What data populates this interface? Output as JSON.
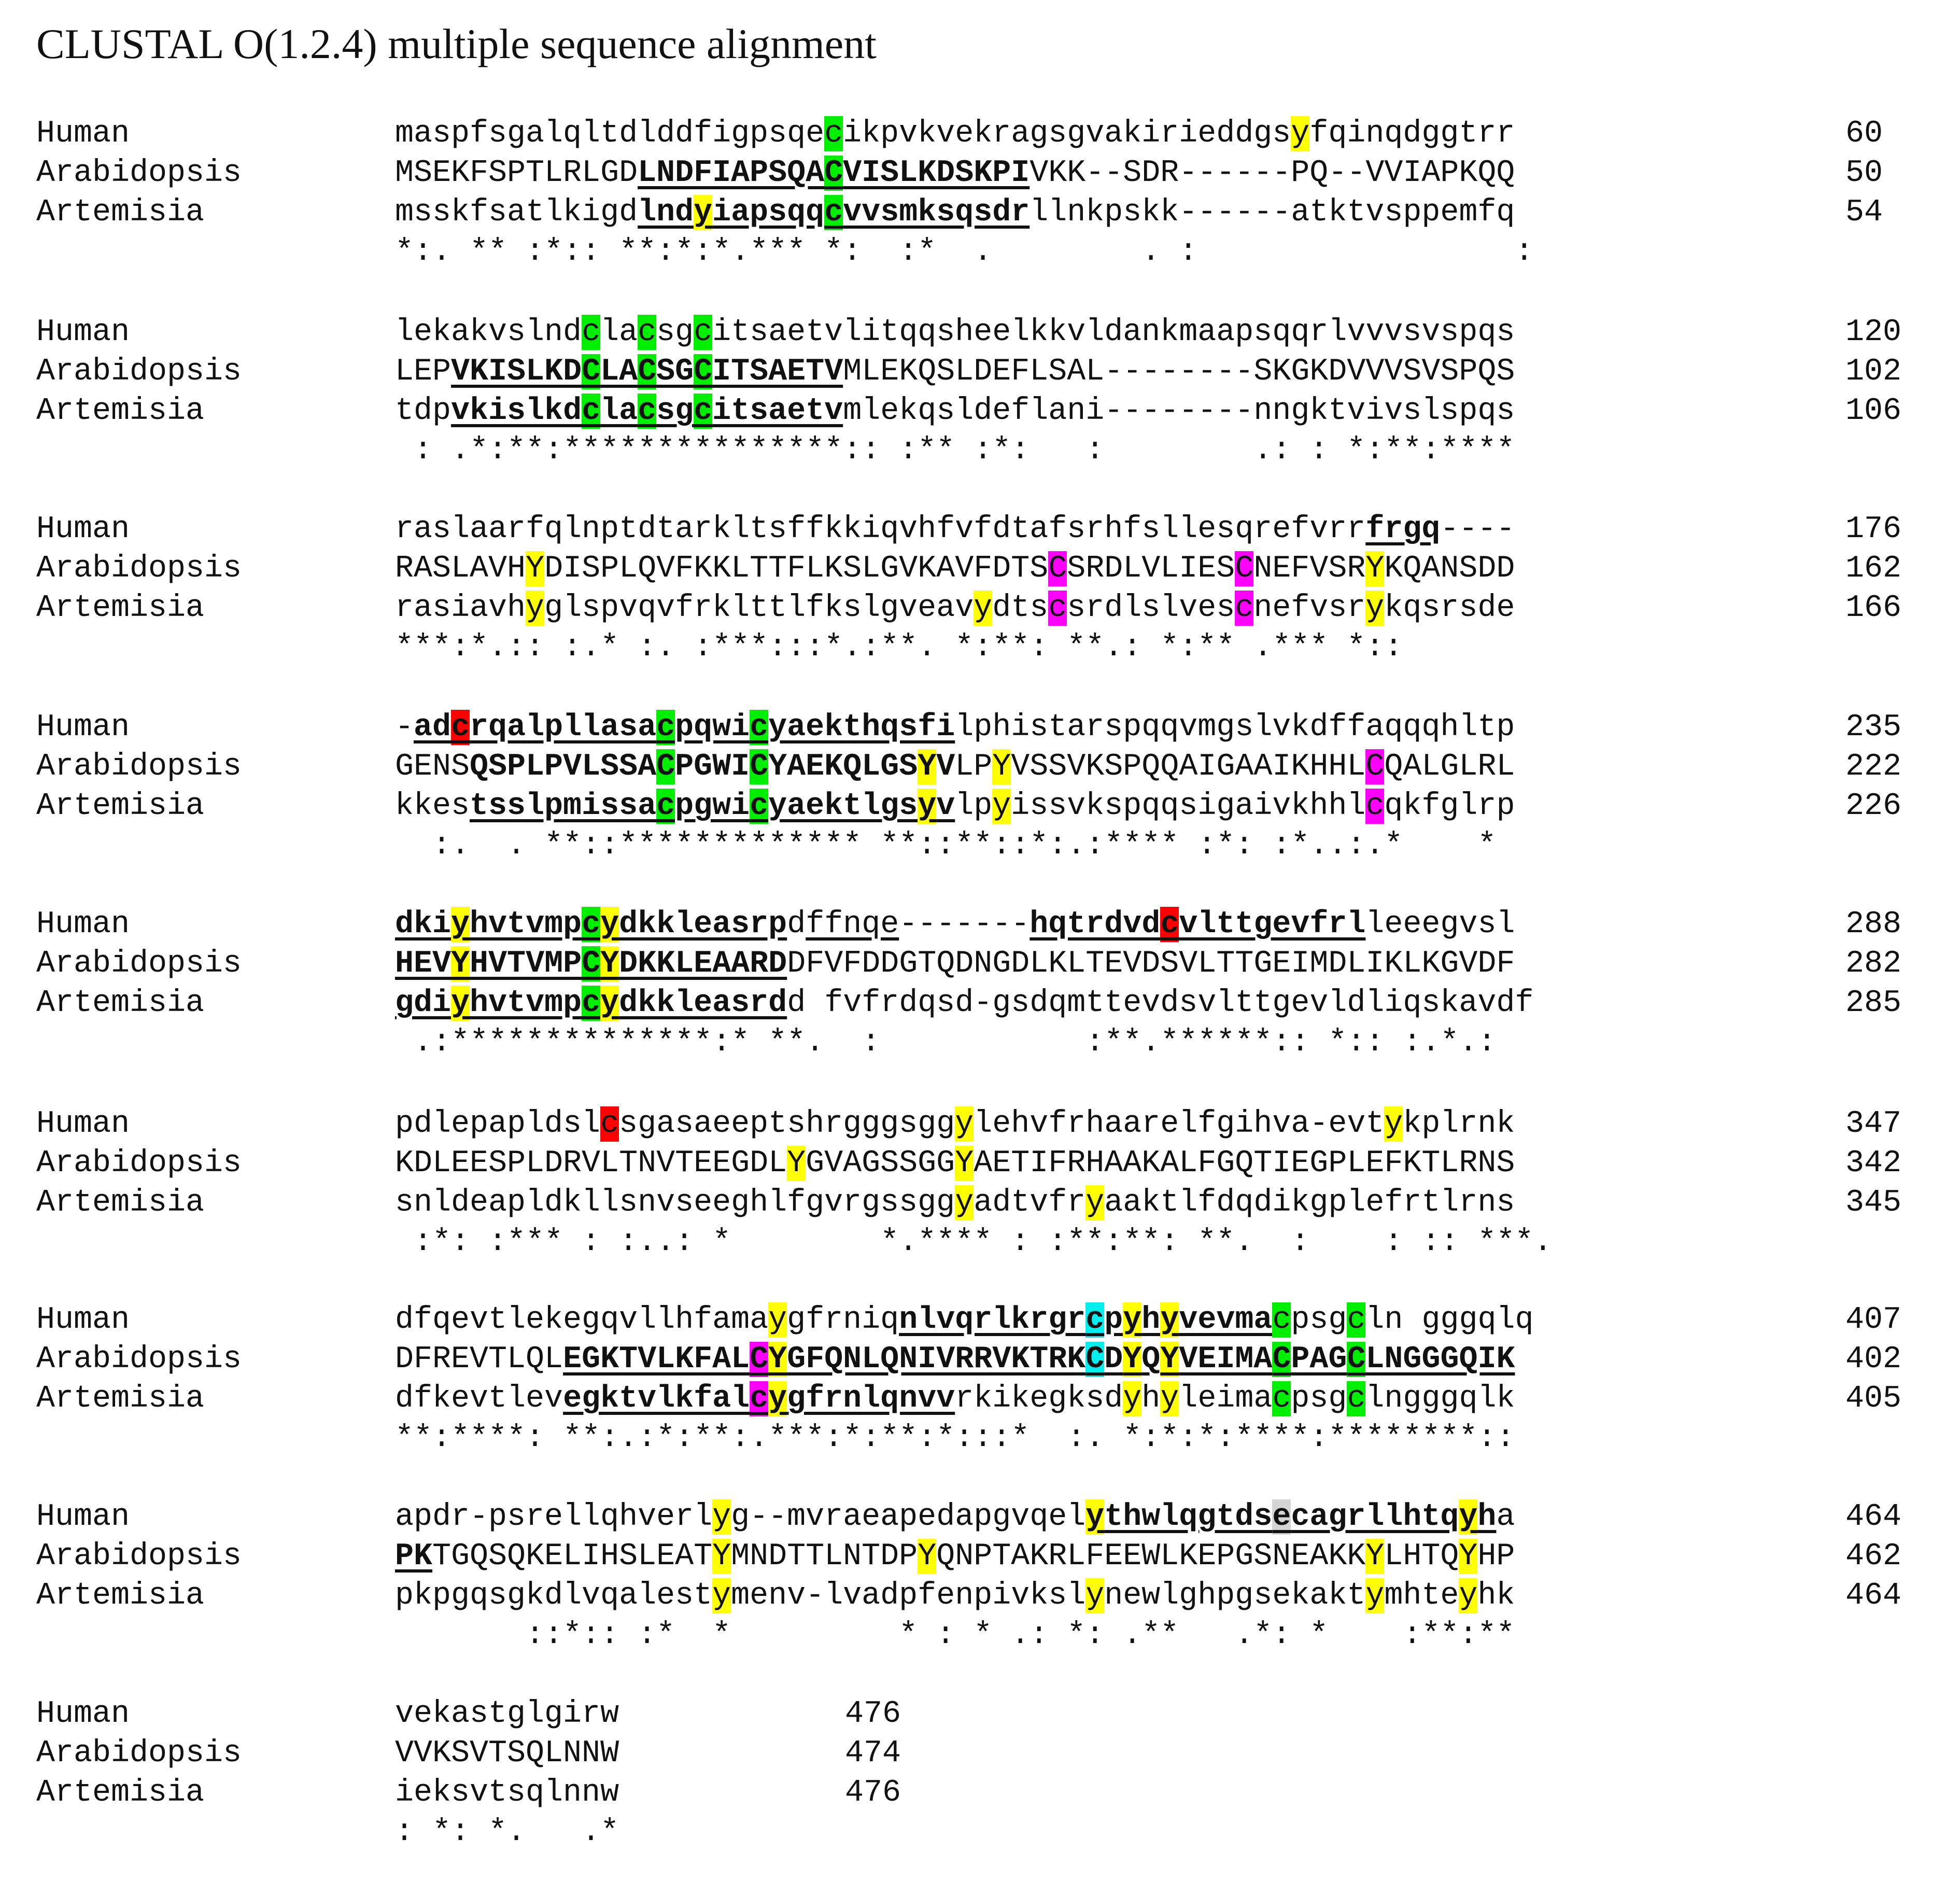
{
  "title": "CLUSTAL O(1.2.4) multiple sequence alignment",
  "colors": {
    "g": "#00ee00",
    "y": "#ffff00",
    "m": "#ff00ff",
    "r": "#ff0000",
    "c": "#00eeee",
    "x": "#d4d4d4"
  },
  "blocks": [
    {
      "rows": [
        {
          "name": "Human",
          "seq": "maspfsgalqltdlddfigpsqecikpvkvekragsgvakirieddgsyfqinqdggtrr",
          "num": "60",
          "marks": [
            {
              "c": "g",
              "s": 23,
              "e": 23
            },
            {
              "c": "y",
              "s": 48,
              "e": 48
            }
          ],
          "bold": [],
          "under": []
        },
        {
          "name": "Arabidopsis",
          "seq": "MSEKFSPTLRLGDLNDFIAPSQACVISLKDSKPIVKK--SDR------PQ--VVIAPKQQ",
          "num": "50",
          "marks": [
            {
              "c": "g",
              "s": 23,
              "e": 23
            }
          ],
          "bold": [
            {
              "s": 13,
              "e": 33
            }
          ],
          "under": [
            {
              "s": 13,
              "e": 33
            }
          ]
        },
        {
          "name": "Artemisia",
          "seq": "msskfsatlkigdlndyiapsqqcvvsmksqsdrllnkpskk------atktvsppemfq",
          "num": "54",
          "marks": [
            {
              "c": "y",
              "s": 16,
              "e": 16
            },
            {
              "c": "g",
              "s": 23,
              "e": 23
            }
          ],
          "bold": [
            {
              "s": 13,
              "e": 33
            }
          ],
          "under": [
            {
              "s": 13,
              "e": 33
            }
          ]
        }
      ],
      "cons": "*:. ** :*:: **:*:*.*** *:  :*  .        . :                 :"
    },
    {
      "rows": [
        {
          "name": "Human",
          "seq": "lekakvslndclacsgcitsaetvlitqqsheelkkvldankmaapsqqrlvvvsvspqs",
          "num": "120",
          "marks": [
            {
              "c": "g",
              "s": 10,
              "e": 10
            },
            {
              "c": "g",
              "s": 13,
              "e": 13
            },
            {
              "c": "g",
              "s": 16,
              "e": 16
            }
          ],
          "bold": [],
          "under": []
        },
        {
          "name": "Arabidopsis",
          "seq": "LEPVKISLKDCLACSGCITSAETVMLEKQSLDEFLSAL--------SKGKDVVVSVSPQS",
          "num": "102",
          "marks": [
            {
              "c": "g",
              "s": 10,
              "e": 10
            },
            {
              "c": "g",
              "s": 13,
              "e": 13
            },
            {
              "c": "g",
              "s": 16,
              "e": 16
            }
          ],
          "bold": [
            {
              "s": 3,
              "e": 23
            }
          ],
          "under": [
            {
              "s": 3,
              "e": 23
            }
          ]
        },
        {
          "name": "Artemisia",
          "seq": "tdpvkislkdclacsgcitsaetvmlekqsldeflani--------nngktvivslspqs",
          "num": "106",
          "marks": [
            {
              "c": "g",
              "s": 10,
              "e": 10
            },
            {
              "c": "g",
              "s": 13,
              "e": 13
            },
            {
              "c": "g",
              "s": 16,
              "e": 16
            }
          ],
          "bold": [
            {
              "s": 3,
              "e": 23
            }
          ],
          "under": [
            {
              "s": 3,
              "e": 23
            }
          ]
        }
      ],
      "cons": " : .*:**:***************:: :** :*:   :        .: : *:**:****"
    },
    {
      "rows": [
        {
          "name": "Human",
          "seq": "raslaarfqlnptdtarkltsffkkiqvhfvfdtafsrhfsllesqrefvrrfrgq----",
          "num": "176",
          "marks": [],
          "bold": [
            {
              "s": 52,
              "e": 55
            }
          ],
          "under": [
            {
              "s": 52,
              "e": 55
            }
          ]
        },
        {
          "name": "Arabidopsis",
          "seq": "RASLAVHYDISPLQVFKKLTTFLKSLGVKAVFDTSCSRDLVLIESCNEFVSRYKQANSDD",
          "num": "162",
          "marks": [
            {
              "c": "y",
              "s": 7,
              "e": 7
            },
            {
              "c": "m",
              "s": 35,
              "e": 35
            },
            {
              "c": "m",
              "s": 45,
              "e": 45
            },
            {
              "c": "y",
              "s": 52,
              "e": 52
            }
          ],
          "bold": [],
          "under": []
        },
        {
          "name": "Artemisia",
          "seq": "rasiavhyglspvqvfrklttlfkslgveavydtscsrdlslvescnefvsrykqsrsde",
          "num": "166",
          "marks": [
            {
              "c": "y",
              "s": 7,
              "e": 7
            },
            {
              "c": "y",
              "s": 31,
              "e": 31
            },
            {
              "c": "m",
              "s": 35,
              "e": 35
            },
            {
              "c": "m",
              "s": 45,
              "e": 45
            },
            {
              "c": "y",
              "s": 52,
              "e": 52
            }
          ],
          "bold": [],
          "under": []
        }
      ],
      "cons": "***:*.:: :.* :. :***:::*.:**. *:**: **.: *:** .*** *::"
    },
    {
      "rows": [
        {
          "name": "Human",
          "seq": "-adcrqalpllasacpqwicyaekthqsfilphistarspqqvmgslvkdffaqqqhltp",
          "num": "235",
          "marks": [
            {
              "c": "r",
              "s": 3,
              "e": 3
            },
            {
              "c": "g",
              "s": 14,
              "e": 14
            },
            {
              "c": "g",
              "s": 19,
              "e": 19
            }
          ],
          "bold": [
            {
              "s": 1,
              "e": 29
            }
          ],
          "under": [
            {
              "s": 1,
              "e": 29
            }
          ]
        },
        {
          "name": "Arabidopsis",
          "seq": "GENSQSPLPVLSSACPGWICYAEKQLGSYVLPYVSSVKSPQQAIGAAIKHHLCQALGLRL",
          "num": "222",
          "marks": [
            {
              "c": "g",
              "s": 14,
              "e": 14
            },
            {
              "c": "g",
              "s": 19,
              "e": 19
            },
            {
              "c": "y",
              "s": 28,
              "e": 28
            },
            {
              "c": "y",
              "s": 32,
              "e": 32
            },
            {
              "c": "m",
              "s": 52,
              "e": 52
            }
          ],
          "bold": [
            {
              "s": 4,
              "e": 29
            }
          ],
          "under": []
        },
        {
          "name": "Artemisia",
          "seq": "kkestsslpmissacpgwicyaektlgsyvlpyissvkspqqsigaivkhhlcqkfglrp",
          "num": "226",
          "marks": [
            {
              "c": "g",
              "s": 14,
              "e": 14
            },
            {
              "c": "g",
              "s": 19,
              "e": 19
            },
            {
              "c": "y",
              "s": 28,
              "e": 28
            },
            {
              "c": "y",
              "s": 32,
              "e": 32
            },
            {
              "c": "m",
              "s": 52,
              "e": 52
            }
          ],
          "bold": [
            {
              "s": 4,
              "e": 29
            }
          ],
          "under": [
            {
              "s": 4,
              "e": 29
            }
          ]
        }
      ],
      "cons": "  :.  . **::************* **::**::*:.:**** :*: :*..:.*    *"
    },
    {
      "rows": [
        {
          "name": "Human",
          "seq": "dkiyhvtvmpcydkkleasrpdffnqe-------hqtrdvdcvlttgevfrlleeegvsl",
          "num": "288",
          "marks": [
            {
              "c": "y",
              "s": 3,
              "e": 3
            },
            {
              "c": "g",
              "s": 10,
              "e": 10
            },
            {
              "c": "y",
              "s": 11,
              "e": 11
            },
            {
              "c": "r",
              "s": 41,
              "e": 41
            }
          ],
          "bold": [
            {
              "s": 0,
              "e": 20
            },
            {
              "s": 34,
              "e": 51
            }
          ],
          "under": [
            {
              "s": 0,
              "e": 20
            },
            {
              "s": 22,
              "e": 26
            },
            {
              "s": 34,
              "e": 51
            }
          ]
        },
        {
          "name": "Arabidopsis",
          "seq": "HEVYHVTVMPCYDKKLEAARDDFVFDDGTQDNGDLKLTEVDSVLTTGEIMDLIKLKGVDF",
          "num": "282",
          "marks": [
            {
              "c": "y",
              "s": 3,
              "e": 3
            },
            {
              "c": "g",
              "s": 10,
              "e": 10
            },
            {
              "c": "y",
              "s": 11,
              "e": 11
            }
          ],
          "bold": [
            {
              "s": 0,
              "e": 20
            }
          ],
          "under": [
            {
              "s": 0,
              "e": 20
            }
          ]
        },
        {
          "name": "Artemisia",
          "seq": "gdiyhvtvmpcydkkleasrdd fvfrdqsd-gsdqmttevdsvlttgevldliqskavdf",
          "num": "285",
          "marks": [
            {
              "c": "y",
              "s": 3,
              "e": 3
            },
            {
              "c": "g",
              "s": 10,
              "e": 10
            },
            {
              "c": "y",
              "s": 11,
              "e": 11
            }
          ],
          "bold": [
            {
              "s": 0,
              "e": 20
            }
          ],
          "under": [
            {
              "s": 0,
              "e": 20
            }
          ]
        }
      ],
      "cons": " .:**************:* **.  :           :**.******:: *:: :.*.:"
    },
    {
      "rows": [
        {
          "name": "Human",
          "seq": "pdlepapldslcsgasaeeptshrgggsggylehvfrhaarelfgihva-evtykplrnk",
          "num": "347",
          "marks": [
            {
              "c": "r",
              "s": 11,
              "e": 11
            },
            {
              "c": "y",
              "s": 30,
              "e": 30
            },
            {
              "c": "y",
              "s": 53,
              "e": 53
            }
          ],
          "bold": [],
          "under": []
        },
        {
          "name": "Arabidopsis",
          "seq": "KDLEESPLDRVLTNVTEEGDLYGVAGSSGGYAETIFRHAAKALFGQTIEGPLEFKTLRNS",
          "num": "342",
          "marks": [
            {
              "c": "y",
              "s": 21,
              "e": 21
            },
            {
              "c": "y",
              "s": 30,
              "e": 30
            }
          ],
          "bold": [],
          "under": []
        },
        {
          "name": "Artemisia",
          "seq": "snldeapldkllsnvseeghlfgvrgssggyadtvfryaaktlfdqdikgplefrtlrns",
          "num": "345",
          "marks": [
            {
              "c": "y",
              "s": 30,
              "e": 30
            },
            {
              "c": "y",
              "s": 37,
              "e": 37
            }
          ],
          "bold": [],
          "under": []
        }
      ],
      "cons": " :*: :*** : :..: *        *.**** : :**:**: **.  :    : :: ***."
    },
    {
      "rows": [
        {
          "name": "Human",
          "seq": "dfqevtlekegqvllhfamaygfrniqnlvqrlkrgrcpyhyvevmacpsgcln gggqlq",
          "num": "407",
          "marks": [
            {
              "c": "y",
              "s": 20,
              "e": 20
            },
            {
              "c": "c",
              "s": 37,
              "e": 37
            },
            {
              "c": "y",
              "s": 39,
              "e": 39
            },
            {
              "c": "y",
              "s": 41,
              "e": 41
            },
            {
              "c": "g",
              "s": 47,
              "e": 47
            },
            {
              "c": "g",
              "s": 51,
              "e": 51
            }
          ],
          "bold": [
            {
              "s": 27,
              "e": 46
            }
          ],
          "under": [
            {
              "s": 27,
              "e": 46
            }
          ]
        },
        {
          "name": "Arabidopsis",
          "seq": "DFREVTLQLEGKTVLKFALCYGFQNLQNIVRRVKTRKCDYQYVEIMACPAGCLNGGGQIK",
          "num": "402",
          "marks": [
            {
              "c": "m",
              "s": 19,
              "e": 19
            },
            {
              "c": "y",
              "s": 20,
              "e": 20
            },
            {
              "c": "c",
              "s": 37,
              "e": 37
            },
            {
              "c": "y",
              "s": 39,
              "e": 39
            },
            {
              "c": "y",
              "s": 41,
              "e": 41
            },
            {
              "c": "g",
              "s": 47,
              "e": 47
            },
            {
              "c": "g",
              "s": 51,
              "e": 51
            }
          ],
          "bold": [
            {
              "s": 9,
              "e": 59
            }
          ],
          "under": [
            {
              "s": 9,
              "e": 59
            }
          ]
        },
        {
          "name": "Artemisia",
          "seq": "dfkevtlevegktvlkfalcygfrnlqnvvrkikegksdyhyleimacpsgclngggqlk",
          "num": "405",
          "marks": [
            {
              "c": "m",
              "s": 19,
              "e": 19
            },
            {
              "c": "y",
              "s": 20,
              "e": 20
            },
            {
              "c": "y",
              "s": 39,
              "e": 39
            },
            {
              "c": "y",
              "s": 41,
              "e": 41
            },
            {
              "c": "g",
              "s": 47,
              "e": 47
            },
            {
              "c": "g",
              "s": 51,
              "e": 51
            }
          ],
          "bold": [
            {
              "s": 9,
              "e": 29
            }
          ],
          "under": [
            {
              "s": 9,
              "e": 29
            }
          ]
        }
      ],
      "cons": "**:****: **:.:*:**:.***:*:**:*:::*  :. *:*:*:****:********::"
    },
    {
      "rows": [
        {
          "name": "Human",
          "seq": "apdr-psrellqhverlyg--mvraeapedapgvqelythwlqgtdsecagrllhtqyha",
          "num": "464",
          "marks": [
            {
              "c": "y",
              "s": 17,
              "e": 17
            },
            {
              "c": "y",
              "s": 37,
              "e": 37
            },
            {
              "c": "x",
              "s": 47,
              "e": 47
            },
            {
              "c": "y",
              "s": 57,
              "e": 57
            }
          ],
          "bold": [
            {
              "s": 37,
              "e": 58
            }
          ],
          "under": [
            {
              "s": 37,
              "e": 58
            }
          ]
        },
        {
          "name": "Arabidopsis",
          "seq": "PKTGQSQKELIHSLEATYMNDTTLNTDPYQNPTAKRLFEEWLKEPGSNEAKKYLHTQYHP",
          "num": "462",
          "marks": [
            {
              "c": "y",
              "s": 17,
              "e": 17
            },
            {
              "c": "y",
              "s": 28,
              "e": 28
            },
            {
              "c": "y",
              "s": 52,
              "e": 52
            },
            {
              "c": "y",
              "s": 57,
              "e": 57
            }
          ],
          "bold": [
            {
              "s": 0,
              "e": 1
            }
          ],
          "under": [
            {
              "s": 0,
              "e": 1
            }
          ]
        },
        {
          "name": "Artemisia",
          "seq": "pkpgqsgkdlvqalestymenv-lvadpfenpivkslynewlghpgsekaktymhteyhk",
          "num": "464",
          "marks": [
            {
              "c": "y",
              "s": 17,
              "e": 17
            },
            {
              "c": "y",
              "s": 37,
              "e": 37
            },
            {
              "c": "y",
              "s": 52,
              "e": 52
            },
            {
              "c": "y",
              "s": 57,
              "e": 57
            }
          ],
          "bold": [],
          "under": []
        }
      ],
      "cons": "       ::*:: :*  *         * : * .: *: .**   .*: *    :**:**"
    },
    {
      "rows": [
        {
          "name": "Human",
          "seq": "vekastglgirw",
          "num": "476",
          "marks": [],
          "bold": [],
          "under": []
        },
        {
          "name": "Arabidopsis",
          "seq": "VVKSVTSQLNNW",
          "num": "474",
          "marks": [],
          "bold": [],
          "under": []
        },
        {
          "name": "Artemisia",
          "seq": "ieksvtsqlnnw",
          "num": "476",
          "marks": [],
          "bold": [],
          "under": []
        }
      ],
      "cons": ": *: *.   .*"
    }
  ]
}
